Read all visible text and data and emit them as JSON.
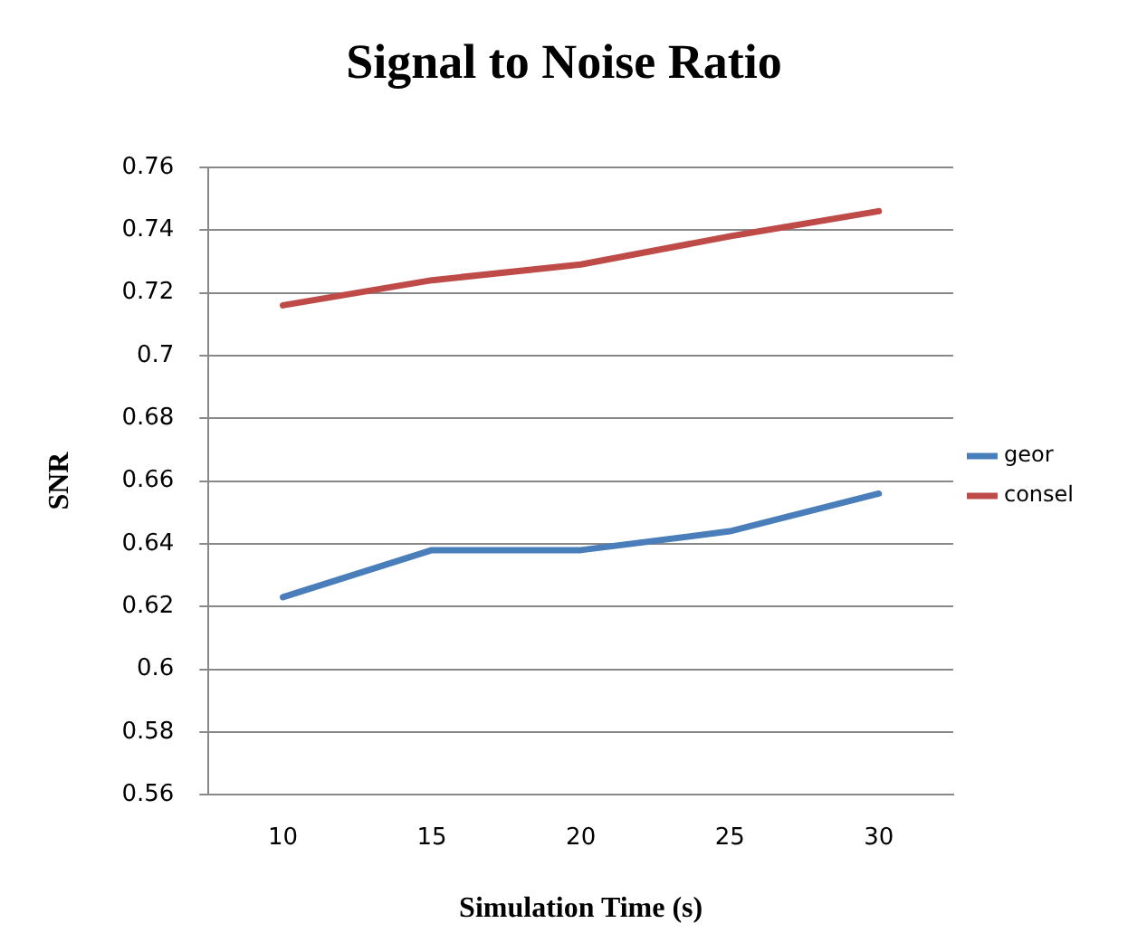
{
  "chart_data": {
    "type": "line",
    "title": "Signal to Noise Ratio",
    "xlabel": "Simulation Time (s)",
    "ylabel": "SNR",
    "categories": [
      "10",
      "15",
      "20",
      "25",
      "30"
    ],
    "series": [
      {
        "name": "geor",
        "color": "#4a7ebb",
        "values": [
          0.623,
          0.638,
          0.638,
          0.644,
          0.656
        ]
      },
      {
        "name": "consel",
        "color": "#be4b48",
        "values": [
          0.716,
          0.724,
          0.729,
          0.738,
          0.746
        ]
      }
    ],
    "ylim": [
      0.56,
      0.76
    ],
    "yticks": [
      0.56,
      0.58,
      0.6,
      0.62,
      0.64,
      0.66,
      0.68,
      0.7,
      0.72,
      0.74,
      0.76
    ],
    "grid": "y",
    "legend": "right",
    "marker": "none",
    "line_style": "solid"
  }
}
